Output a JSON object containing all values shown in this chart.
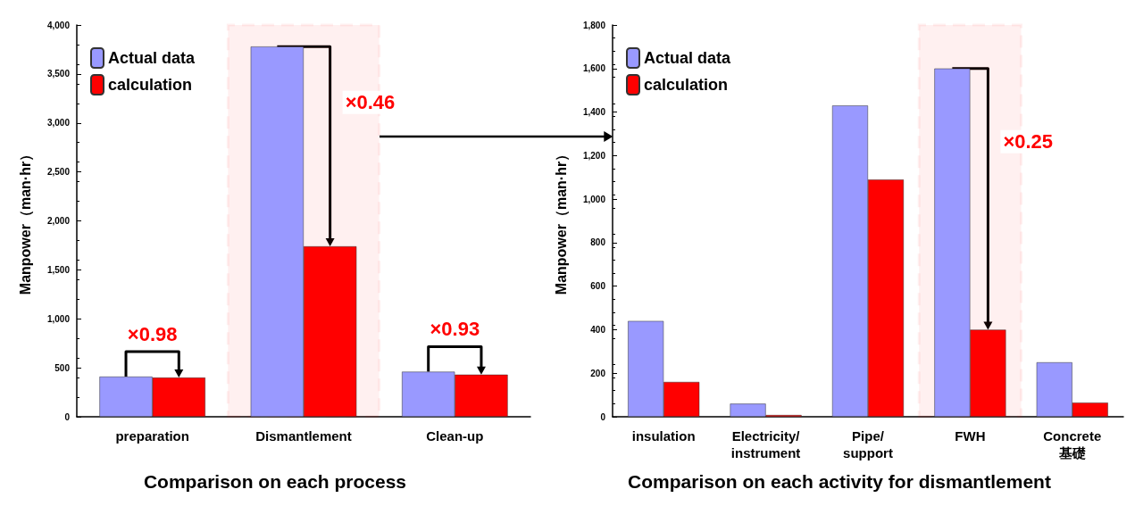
{
  "chart_data": [
    {
      "type": "bar",
      "title": "Comparison on each process",
      "ylabel": "Manpower（man·hr）",
      "categories": [
        "preparation",
        "Dismantlement",
        "Clean-up"
      ],
      "series": [
        {
          "name": "Actual data",
          "color": "#9999ff",
          "values": [
            410,
            3780,
            460
          ]
        },
        {
          "name": "calculation",
          "color": "#ff0000",
          "values": [
            400,
            1740,
            430
          ]
        }
      ],
      "ylim": [
        0,
        4000
      ],
      "yticks": [
        0,
        {
          "value": 500,
          "label": "500"
        },
        {
          "value": 1000,
          "label": "1,000"
        },
        {
          "value": 1500,
          "label": "1,500"
        },
        {
          "value": 2000,
          "label": "2,000"
        },
        {
          "value": 2500,
          "label": "2,500"
        },
        {
          "value": 3000,
          "label": "3,000"
        },
        {
          "value": 3500,
          "label": "3,500"
        },
        {
          "value": 4000,
          "label": "4,000"
        }
      ],
      "annotations": [
        "×0.98",
        {
          "text": "×0.46",
          "x": "Dismantlement"
        },
        "×0.93"
      ],
      "bands": [
        {
          "axis": "x",
          "from": "Dismantlement",
          "to": "Dismantlement",
          "color": "#ff0000"
        }
      ],
      "grid": false,
      "legend": "top left"
    },
    {
      "type": "bar",
      "title": "Comparison on each activity for dismantlement",
      "ylabel": "Manpower（man·hr）",
      "categories": [
        "insulation",
        "Electricity/\ninstrument",
        "Pipe/\nsupport",
        "FWH",
        "Concrete\n基礎"
      ],
      "series": [
        {
          "name": "Actual data",
          "color": "#9999ff",
          "values": [
            440,
            60,
            1430,
            1600,
            250
          ]
        },
        {
          "name": "calculation",
          "color": "#ff0000",
          "values": [
            160,
            8,
            1090,
            400,
            65
          ]
        }
      ],
      "ylim": [
        0,
        1800
      ],
      "yticks": [
        0,
        {
          "value": 200,
          "label": "200"
        },
        {
          "value": 400,
          "label": "400"
        },
        {
          "value": 600,
          "label": "600"
        },
        {
          "value": 800,
          "label": "800"
        },
        {
          "value": 1000,
          "label": "1,000"
        },
        {
          "value": 1200,
          "label": "1,200"
        },
        {
          "value": 1400,
          "label": "1,400"
        },
        {
          "value": 1600,
          "label": "1,600"
        },
        {
          "value": 1800,
          "label": "1,800"
        }
      ],
      "annotations": [
        {
          "text": "×0.25",
          "x": "FWH"
        }
      ],
      "bands": [
        {
          "axis": "x",
          "from": "FWH",
          "to": "FWH",
          "color": "#ff0000"
        }
      ],
      "grid": false,
      "legend": "top left"
    }
  ]
}
